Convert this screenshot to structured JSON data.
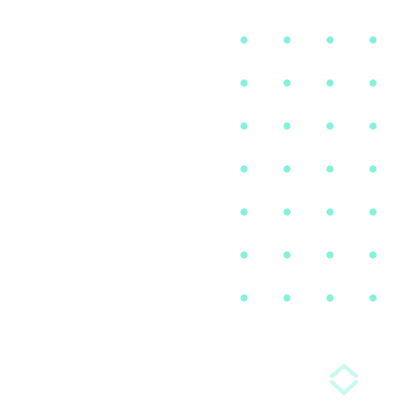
{
  "pattern": {
    "columns": 4,
    "rows": 7,
    "dot_color": "#82f2dc",
    "icon": "dot-grid-icon"
  },
  "decoration": {
    "icon": "diamond-chevron-icon",
    "color": "#c8f8ee"
  }
}
